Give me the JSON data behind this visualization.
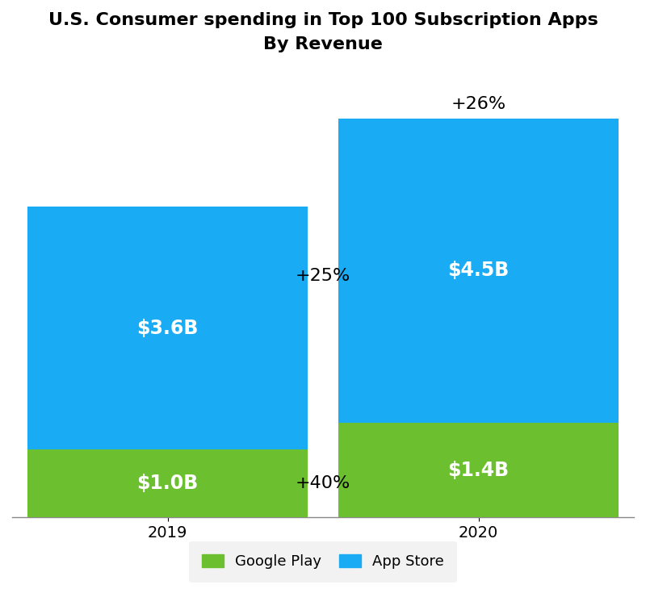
{
  "title_line1": "U.S. Consumer spending in Top 100 Subscription Apps",
  "title_line2": "By Revenue",
  "categories": [
    "2019",
    "2020"
  ],
  "google_play": [
    1.0,
    1.4
  ],
  "app_store": [
    3.6,
    4.5
  ],
  "google_play_color": "#6CBF2E",
  "app_store_color": "#1AABF5",
  "google_play_labels": [
    "$1.0B",
    "$1.4B"
  ],
  "app_store_labels": [
    "$3.6B",
    "$4.5B"
  ],
  "annotation_between_top": "+25%",
  "annotation_between_bottom": "+40%",
  "annotation_top_2020": "+26%",
  "bar_width": 0.45,
  "bar_positions": [
    0.25,
    0.75
  ],
  "background_color": "#ffffff",
  "legend_bg": "#efefef",
  "legend_labels": [
    "Google Play",
    "App Store"
  ],
  "title_fontsize": 16,
  "label_fontsize": 17,
  "annotation_fontsize": 16,
  "tick_fontsize": 14
}
